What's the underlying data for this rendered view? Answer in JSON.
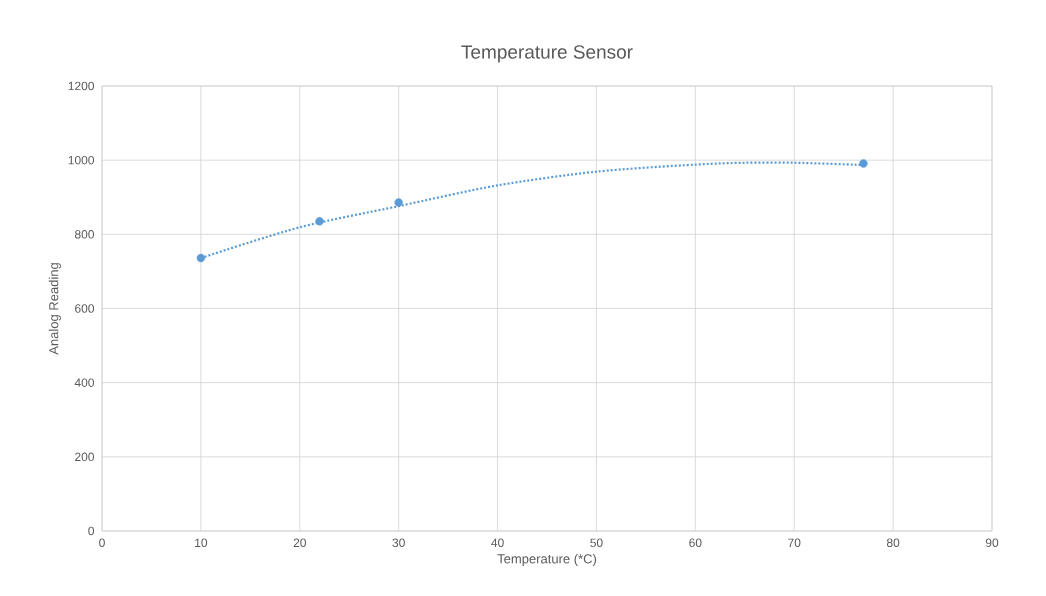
{
  "chart_data": {
    "type": "scatter",
    "title": "Temperature Sensor",
    "xlabel": "Temperature (*C)",
    "ylabel": "Analog Reading",
    "series": [
      {
        "color": "#5b9bd5",
        "marker": "circle",
        "x": [
          10,
          22,
          30,
          77
        ],
        "values": [
          736,
          835,
          886,
          991
        ]
      },
      {
        "type": "line",
        "color": "#5b9bd5",
        "line_style": "dotted",
        "marker": "none",
        "x": [
          10,
          20,
          30,
          40,
          50,
          60,
          65,
          70,
          77
        ],
        "values": [
          736,
          819,
          876,
          932,
          969,
          988,
          993,
          993,
          987
        ]
      }
    ],
    "xlim": [
      0,
      90
    ],
    "xticks": [
      0,
      10,
      20,
      30,
      40,
      50,
      60,
      70,
      80,
      90
    ],
    "ylim": [
      0,
      1200
    ],
    "yticks": [
      0,
      200,
      400,
      600,
      800,
      1000,
      1200
    ],
    "grid": true
  }
}
